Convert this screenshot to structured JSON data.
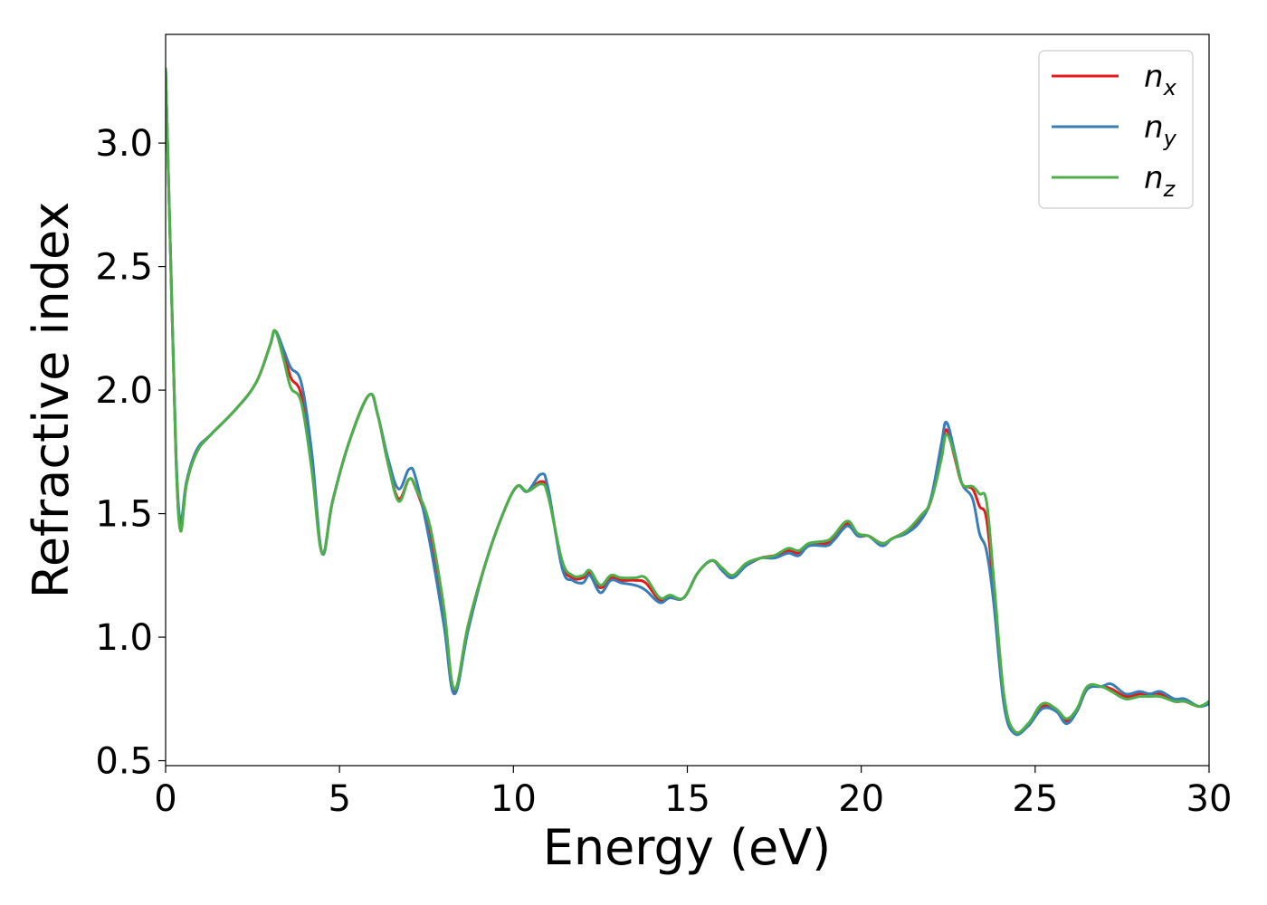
{
  "chart_data": {
    "type": "line",
    "title": "",
    "xlabel": "Energy (eV)",
    "ylabel": "Refractive index",
    "xlim": [
      0,
      30
    ],
    "ylim": [
      0.48,
      3.44
    ],
    "xticks": [
      0,
      5,
      10,
      15,
      20,
      25,
      30
    ],
    "xtick_labels": [
      "0",
      "5",
      "10",
      "15",
      "20",
      "25",
      "30"
    ],
    "yticks": [
      0.5,
      1.0,
      1.5,
      2.0,
      2.5,
      3.0
    ],
    "ytick_labels": [
      "0.5",
      "1.0",
      "1.5",
      "2.0",
      "2.5",
      "3.0"
    ],
    "grid": false,
    "legend_position": "top-right",
    "colors": {
      "n_x": "#e41a1c",
      "n_y": "#377eb8",
      "n_z": "#4daf4a"
    },
    "series": [
      {
        "name": "n_x",
        "symbol": "n",
        "subscript": "x",
        "color": "#e41a1c",
        "points": [
          [
            0,
            3.3
          ],
          [
            0.15,
            2.5
          ],
          [
            0.3,
            1.72
          ],
          [
            0.43,
            1.44
          ],
          [
            0.6,
            1.62
          ],
          [
            0.9,
            1.75
          ],
          [
            1.3,
            1.82
          ],
          [
            2.0,
            1.92
          ],
          [
            2.6,
            2.03
          ],
          [
            3.0,
            2.18
          ],
          [
            3.15,
            2.24
          ],
          [
            3.4,
            2.15
          ],
          [
            3.6,
            2.05
          ],
          [
            3.9,
            1.98
          ],
          [
            4.2,
            1.7
          ],
          [
            4.5,
            1.34
          ],
          [
            4.8,
            1.55
          ],
          [
            5.3,
            1.8
          ],
          [
            5.85,
            1.98
          ],
          [
            6.1,
            1.9
          ],
          [
            6.4,
            1.7
          ],
          [
            6.7,
            1.56
          ],
          [
            7.0,
            1.64
          ],
          [
            7.2,
            1.6
          ],
          [
            7.6,
            1.42
          ],
          [
            8.0,
            1.1
          ],
          [
            8.3,
            0.78
          ],
          [
            8.7,
            1.05
          ],
          [
            9.2,
            1.3
          ],
          [
            9.7,
            1.5
          ],
          [
            10.1,
            1.61
          ],
          [
            10.4,
            1.59
          ],
          [
            10.8,
            1.63
          ],
          [
            11.0,
            1.58
          ],
          [
            11.4,
            1.3
          ],
          [
            11.7,
            1.24
          ],
          [
            12.0,
            1.24
          ],
          [
            12.2,
            1.26
          ],
          [
            12.5,
            1.2
          ],
          [
            12.8,
            1.24
          ],
          [
            13.1,
            1.23
          ],
          [
            13.5,
            1.23
          ],
          [
            13.8,
            1.22
          ],
          [
            14.2,
            1.15
          ],
          [
            14.5,
            1.16
          ],
          [
            14.9,
            1.16
          ],
          [
            15.3,
            1.26
          ],
          [
            15.7,
            1.31
          ],
          [
            16.0,
            1.28
          ],
          [
            16.3,
            1.25
          ],
          [
            16.7,
            1.29
          ],
          [
            17.1,
            1.32
          ],
          [
            17.5,
            1.33
          ],
          [
            17.9,
            1.35
          ],
          [
            18.2,
            1.34
          ],
          [
            18.5,
            1.37
          ],
          [
            19.0,
            1.38
          ],
          [
            19.2,
            1.4
          ],
          [
            19.6,
            1.46
          ],
          [
            19.9,
            1.41
          ],
          [
            20.2,
            1.41
          ],
          [
            20.6,
            1.38
          ],
          [
            20.9,
            1.4
          ],
          [
            21.3,
            1.43
          ],
          [
            21.7,
            1.48
          ],
          [
            22.0,
            1.55
          ],
          [
            22.3,
            1.74
          ],
          [
            22.45,
            1.84
          ],
          [
            22.7,
            1.72
          ],
          [
            22.9,
            1.62
          ],
          [
            23.2,
            1.6
          ],
          [
            23.4,
            1.53
          ],
          [
            23.6,
            1.48
          ],
          [
            23.8,
            1.2
          ],
          [
            24.1,
            0.75
          ],
          [
            24.4,
            0.62
          ],
          [
            24.8,
            0.64
          ],
          [
            25.2,
            0.72
          ],
          [
            25.6,
            0.7
          ],
          [
            25.9,
            0.66
          ],
          [
            26.2,
            0.7
          ],
          [
            26.5,
            0.79
          ],
          [
            26.9,
            0.8
          ],
          [
            27.2,
            0.79
          ],
          [
            27.6,
            0.76
          ],
          [
            28.0,
            0.77
          ],
          [
            28.3,
            0.77
          ],
          [
            28.6,
            0.77
          ],
          [
            29.0,
            0.74
          ],
          [
            29.3,
            0.74
          ],
          [
            29.7,
            0.72
          ],
          [
            30.0,
            0.73
          ]
        ]
      },
      {
        "name": "n_y",
        "symbol": "n",
        "subscript": "y",
        "color": "#377eb8",
        "points": [
          [
            0,
            3.3
          ],
          [
            0.15,
            2.5
          ],
          [
            0.3,
            1.74
          ],
          [
            0.43,
            1.47
          ],
          [
            0.6,
            1.63
          ],
          [
            0.9,
            1.76
          ],
          [
            1.3,
            1.82
          ],
          [
            2.0,
            1.92
          ],
          [
            2.6,
            2.03
          ],
          [
            3.0,
            2.18
          ],
          [
            3.15,
            2.24
          ],
          [
            3.4,
            2.16
          ],
          [
            3.6,
            2.09
          ],
          [
            3.9,
            2.03
          ],
          [
            4.2,
            1.75
          ],
          [
            4.5,
            1.34
          ],
          [
            4.8,
            1.55
          ],
          [
            5.3,
            1.8
          ],
          [
            5.85,
            1.98
          ],
          [
            6.1,
            1.9
          ],
          [
            6.4,
            1.72
          ],
          [
            6.7,
            1.6
          ],
          [
            7.0,
            1.68
          ],
          [
            7.2,
            1.64
          ],
          [
            7.6,
            1.38
          ],
          [
            8.0,
            1.05
          ],
          [
            8.3,
            0.77
          ],
          [
            8.7,
            1.03
          ],
          [
            9.2,
            1.3
          ],
          [
            9.7,
            1.5
          ],
          [
            10.1,
            1.61
          ],
          [
            10.4,
            1.59
          ],
          [
            10.8,
            1.66
          ],
          [
            11.0,
            1.6
          ],
          [
            11.4,
            1.28
          ],
          [
            11.7,
            1.23
          ],
          [
            12.0,
            1.22
          ],
          [
            12.2,
            1.25
          ],
          [
            12.5,
            1.18
          ],
          [
            12.8,
            1.23
          ],
          [
            13.1,
            1.22
          ],
          [
            13.5,
            1.21
          ],
          [
            13.8,
            1.19
          ],
          [
            14.2,
            1.14
          ],
          [
            14.5,
            1.16
          ],
          [
            14.9,
            1.16
          ],
          [
            15.3,
            1.26
          ],
          [
            15.7,
            1.31
          ],
          [
            16.0,
            1.27
          ],
          [
            16.3,
            1.24
          ],
          [
            16.7,
            1.29
          ],
          [
            17.1,
            1.32
          ],
          [
            17.5,
            1.32
          ],
          [
            17.9,
            1.34
          ],
          [
            18.2,
            1.33
          ],
          [
            18.5,
            1.37
          ],
          [
            19.0,
            1.37
          ],
          [
            19.2,
            1.39
          ],
          [
            19.6,
            1.45
          ],
          [
            19.9,
            1.41
          ],
          [
            20.2,
            1.41
          ],
          [
            20.6,
            1.37
          ],
          [
            20.9,
            1.4
          ],
          [
            21.3,
            1.42
          ],
          [
            21.7,
            1.47
          ],
          [
            22.0,
            1.56
          ],
          [
            22.3,
            1.78
          ],
          [
            22.45,
            1.87
          ],
          [
            22.7,
            1.74
          ],
          [
            22.9,
            1.62
          ],
          [
            23.2,
            1.56
          ],
          [
            23.4,
            1.42
          ],
          [
            23.6,
            1.35
          ],
          [
            23.8,
            1.15
          ],
          [
            24.1,
            0.73
          ],
          [
            24.4,
            0.61
          ],
          [
            24.8,
            0.64
          ],
          [
            25.2,
            0.71
          ],
          [
            25.6,
            0.7
          ],
          [
            25.9,
            0.65
          ],
          [
            26.2,
            0.7
          ],
          [
            26.5,
            0.79
          ],
          [
            26.9,
            0.8
          ],
          [
            27.2,
            0.81
          ],
          [
            27.6,
            0.77
          ],
          [
            28.0,
            0.78
          ],
          [
            28.3,
            0.77
          ],
          [
            28.6,
            0.78
          ],
          [
            29.0,
            0.75
          ],
          [
            29.3,
            0.75
          ],
          [
            29.7,
            0.72
          ],
          [
            30.0,
            0.73
          ]
        ]
      },
      {
        "name": "n_z",
        "symbol": "n",
        "subscript": "z",
        "color": "#4daf4a",
        "points": [
          [
            0,
            3.3
          ],
          [
            0.15,
            2.5
          ],
          [
            0.3,
            1.72
          ],
          [
            0.43,
            1.43
          ],
          [
            0.6,
            1.62
          ],
          [
            0.9,
            1.75
          ],
          [
            1.3,
            1.82
          ],
          [
            2.0,
            1.92
          ],
          [
            2.6,
            2.03
          ],
          [
            3.0,
            2.18
          ],
          [
            3.15,
            2.24
          ],
          [
            3.4,
            2.12
          ],
          [
            3.6,
            2.01
          ],
          [
            3.9,
            1.95
          ],
          [
            4.2,
            1.68
          ],
          [
            4.5,
            1.34
          ],
          [
            4.8,
            1.55
          ],
          [
            5.3,
            1.8
          ],
          [
            5.85,
            1.98
          ],
          [
            6.1,
            1.9
          ],
          [
            6.4,
            1.7
          ],
          [
            6.7,
            1.55
          ],
          [
            7.0,
            1.64
          ],
          [
            7.2,
            1.6
          ],
          [
            7.6,
            1.45
          ],
          [
            8.0,
            1.12
          ],
          [
            8.3,
            0.79
          ],
          [
            8.7,
            1.05
          ],
          [
            9.2,
            1.3
          ],
          [
            9.7,
            1.5
          ],
          [
            10.1,
            1.61
          ],
          [
            10.4,
            1.59
          ],
          [
            10.8,
            1.62
          ],
          [
            11.0,
            1.57
          ],
          [
            11.4,
            1.31
          ],
          [
            11.7,
            1.25
          ],
          [
            12.0,
            1.25
          ],
          [
            12.2,
            1.27
          ],
          [
            12.5,
            1.21
          ],
          [
            12.8,
            1.25
          ],
          [
            13.1,
            1.24
          ],
          [
            13.5,
            1.24
          ],
          [
            13.8,
            1.24
          ],
          [
            14.2,
            1.16
          ],
          [
            14.5,
            1.17
          ],
          [
            14.9,
            1.16
          ],
          [
            15.3,
            1.26
          ],
          [
            15.7,
            1.31
          ],
          [
            16.0,
            1.28
          ],
          [
            16.3,
            1.25
          ],
          [
            16.7,
            1.3
          ],
          [
            17.1,
            1.32
          ],
          [
            17.5,
            1.33
          ],
          [
            17.9,
            1.36
          ],
          [
            18.2,
            1.35
          ],
          [
            18.5,
            1.38
          ],
          [
            19.0,
            1.39
          ],
          [
            19.2,
            1.41
          ],
          [
            19.6,
            1.47
          ],
          [
            19.9,
            1.42
          ],
          [
            20.2,
            1.41
          ],
          [
            20.6,
            1.38
          ],
          [
            20.9,
            1.4
          ],
          [
            21.3,
            1.43
          ],
          [
            21.7,
            1.49
          ],
          [
            22.0,
            1.55
          ],
          [
            22.3,
            1.72
          ],
          [
            22.45,
            1.82
          ],
          [
            22.7,
            1.73
          ],
          [
            22.9,
            1.62
          ],
          [
            23.2,
            1.61
          ],
          [
            23.4,
            1.58
          ],
          [
            23.6,
            1.55
          ],
          [
            23.8,
            1.25
          ],
          [
            24.1,
            0.77
          ],
          [
            24.4,
            0.62
          ],
          [
            24.8,
            0.65
          ],
          [
            25.2,
            0.73
          ],
          [
            25.6,
            0.71
          ],
          [
            25.9,
            0.67
          ],
          [
            26.2,
            0.71
          ],
          [
            26.5,
            0.8
          ],
          [
            26.9,
            0.8
          ],
          [
            27.2,
            0.78
          ],
          [
            27.6,
            0.75
          ],
          [
            28.0,
            0.76
          ],
          [
            28.3,
            0.76
          ],
          [
            28.6,
            0.76
          ],
          [
            29.0,
            0.74
          ],
          [
            29.3,
            0.74
          ],
          [
            29.7,
            0.72
          ],
          [
            30.0,
            0.74
          ]
        ]
      }
    ]
  }
}
